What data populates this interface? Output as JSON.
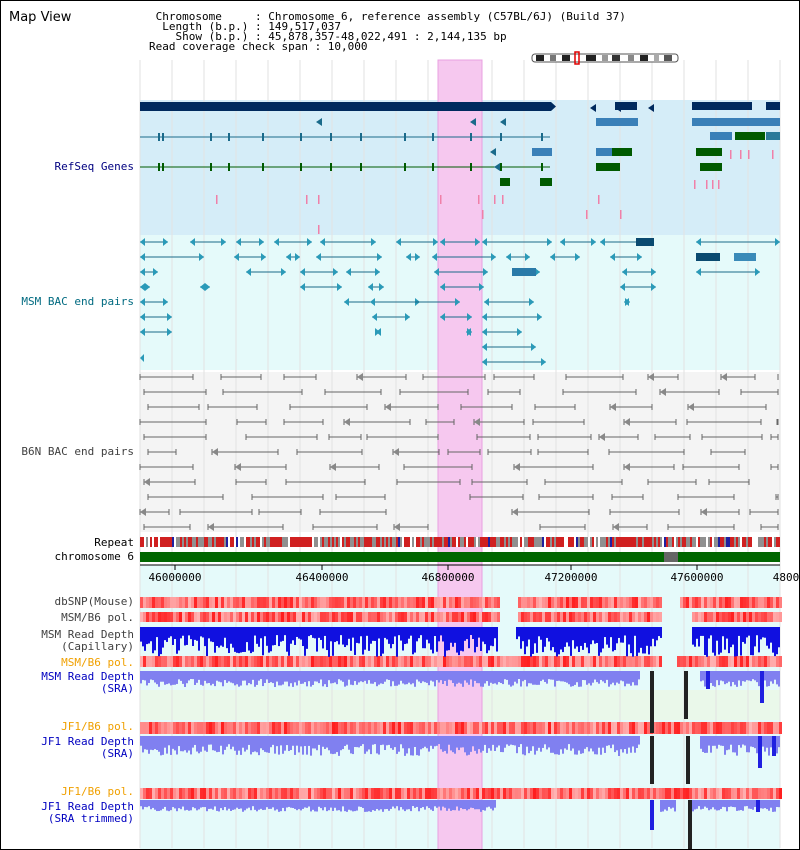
{
  "page_title": "Map View",
  "header": {
    "lines": [
      " Chromosome     : Chromosome 6, reference assembly (C57BL/6J) (Build 37)",
      "  Length (b.p.) : 149,517,037",
      "    Show (b.p.) : 45,878,357-48,022,491 : 2,144,135 bp",
      "Read coverage check span : 10,000"
    ]
  },
  "tracks": {
    "refseq": "RefSeq Genes",
    "msm_bac": "MSM BAC end pairs",
    "b6n_bac": "B6N BAC end pairs",
    "repeat": "Repeat",
    "chromosome": "chromosome 6",
    "dbsnp": "dbSNP(Mouse)",
    "msm_b6_pol_1": "MSM/B6 pol.",
    "msm_depth_cap_1": "MSM Read Depth",
    "msm_depth_cap_2": "(Capillary)",
    "msm_b6_pol_2": "MSM/B6 pol.",
    "msm_depth_sra_1": "MSM Read Depth",
    "msm_depth_sra_2": "(SRA)",
    "jf1_b6_pol_1": "JF1/B6 pol.",
    "jf1_depth_sra_1": "JF1 Read Depth",
    "jf1_depth_sra_2": "(SRA)",
    "jf1_b6_pol_2": "JF1/B6 pol.",
    "jf1_depth_trim_1": "JF1 Read Depth",
    "jf1_depth_trim_2": "(SRA trimmed)"
  },
  "axis": {
    "ticks": [
      "46000000",
      "46400000",
      "46800000",
      "47200000",
      "47600000",
      "4800"
    ]
  },
  "colors": {
    "gene_navy": "#002a5e",
    "gene_teal": "#1a6a8a",
    "gene_green": "#005a00",
    "highlight": "#f6c8ef",
    "refseq_bg": "#d5edf8",
    "bac_bg": "#e5fafa",
    "bac_gray_bg": "#f4f4f4",
    "depth_blue": "#1010e0",
    "depth_light": "#8080f0",
    "snp_red": "#e83030"
  }
}
